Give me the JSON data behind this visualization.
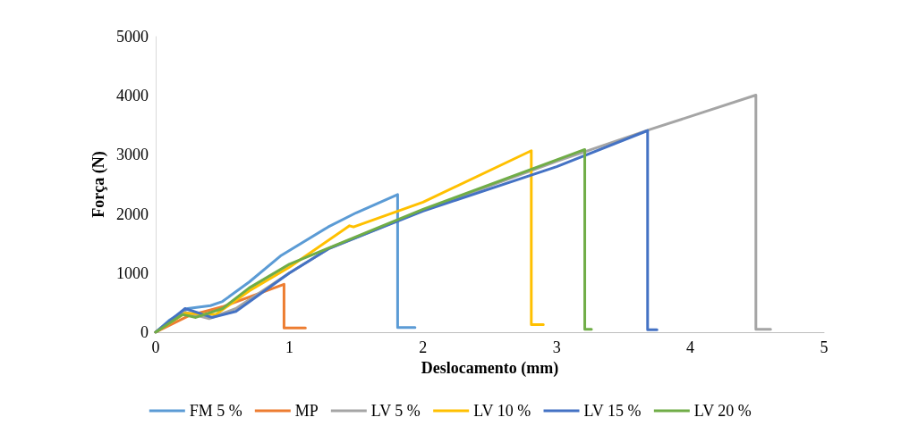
{
  "chart_data": {
    "type": "line",
    "xlabel": "Deslocamento (mm)",
    "ylabel": "Força (N)",
    "xlim": [
      0,
      5
    ],
    "xticks": [
      0,
      1,
      2,
      3,
      4,
      5
    ],
    "ylim": [
      0,
      5000
    ],
    "yticks": [
      0,
      1000,
      2000,
      3000,
      4000,
      5000
    ],
    "grid": false,
    "legend": "bottom",
    "marker": "none",
    "line_style": "solid",
    "series": [
      {
        "name": "FM 5 %",
        "color": "#5b9bd5",
        "x": [
          0,
          0.1,
          0.24,
          0.41,
          0.5,
          0.7,
          0.94,
          1.29,
          1.5,
          1.81,
          1.81,
          1.94
        ],
        "values": [
          0,
          200,
          400,
          450,
          520,
          850,
          1300,
          1780,
          2020,
          2330,
          80,
          80
        ]
      },
      {
        "name": "MP",
        "color": "#ed7d31",
        "x": [
          0,
          0.25,
          0.5,
          0.96,
          0.96,
          1.12
        ],
        "values": [
          0,
          280,
          430,
          810,
          70,
          70
        ]
      },
      {
        "name": "LV 5 %",
        "color": "#a5a5a5",
        "x": [
          0,
          0.2,
          0.4,
          0.6,
          1,
          1.3,
          2,
          3,
          3.7,
          4.49,
          4.49,
          4.6
        ],
        "values": [
          0,
          350,
          230,
          400,
          1000,
          1420,
          2060,
          2890,
          3430,
          4010,
          50,
          50
        ]
      },
      {
        "name": "LV 10 %",
        "color": "#ffc000",
        "x": [
          0,
          0.22,
          0.45,
          0.7,
          1,
          1.45,
          1.48,
          2,
          2.81,
          2.81,
          2.9
        ],
        "values": [
          0,
          320,
          300,
          700,
          1100,
          1800,
          1780,
          2200,
          3070,
          130,
          130
        ]
      },
      {
        "name": "LV 15 %",
        "color": "#4472c4",
        "x": [
          0,
          0.22,
          0.42,
          0.6,
          1,
          1.3,
          2,
          3,
          3.68,
          3.68,
          3.75
        ],
        "values": [
          0,
          400,
          250,
          350,
          1000,
          1420,
          2050,
          2800,
          3410,
          40,
          40
        ]
      },
      {
        "name": "LV 20 %",
        "color": "#70ad47",
        "x": [
          0,
          0.2,
          0.3,
          0.5,
          0.7,
          1,
          1.3,
          2,
          3.21,
          3.21,
          3.26
        ],
        "values": [
          0,
          300,
          250,
          400,
          750,
          1150,
          1430,
          2080,
          3090,
          50,
          50
        ]
      }
    ]
  }
}
